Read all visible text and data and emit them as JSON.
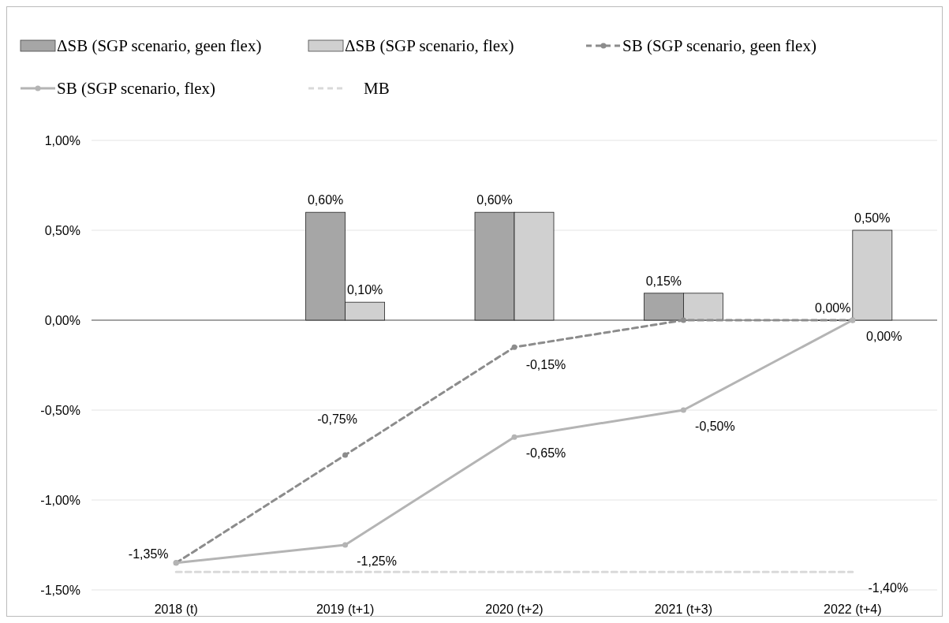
{
  "chart_data": {
    "type": "bar",
    "categories": [
      "2018 (t)",
      "2019 (t+1)",
      "2020 (t+2)",
      "2021 (t+3)",
      "2022 (t+4)"
    ],
    "ylim": [
      -1.5,
      1
    ],
    "yticks": [
      {
        "value": -1.5,
        "label": "-1,50%"
      },
      {
        "value": -1,
        "label": "-1,00%"
      },
      {
        "value": -0.5,
        "label": "-0,50%"
      },
      {
        "value": 0,
        "label": "0,00%"
      },
      {
        "value": 0.5,
        "label": "0,50%"
      },
      {
        "value": 1,
        "label": "1,00%"
      }
    ],
    "grid": "y",
    "legend": "top",
    "marker": "circle",
    "series": [
      {
        "name": "ΔSB (SGP scenario,  geen flex)",
        "color": "#a6a6a6",
        "values": [
          null,
          0.6,
          0.6,
          0.15,
          0
        ],
        "value_labels": [
          null,
          "0,60%",
          "0,60%",
          "0,15%",
          "0,00%"
        ]
      },
      {
        "name": "ΔSB (SGP scenario,  flex)",
        "color": "#d0d0d0",
        "values": [
          null,
          0.1,
          0.6,
          0.15,
          0.5
        ],
        "value_labels": [
          null,
          "0,10%",
          null,
          null,
          "0,50%"
        ]
      },
      {
        "name": "SB (SGP scenario, geen flex)",
        "type": "line",
        "line_style": "dashed",
        "color": "#8c8c8c",
        "values": [
          -1.35,
          -0.75,
          -0.15,
          0,
          0
        ],
        "value_labels": [
          "-1,35%",
          "-0,75%",
          "-0,15%",
          null,
          null
        ]
      },
      {
        "name": "SB (SGP scenario, flex)",
        "type": "line",
        "line_style": "solid",
        "color": "#b4b4b4",
        "values": [
          -1.35,
          -1.25,
          -0.65,
          -0.5,
          0
        ],
        "value_labels": [
          null,
          "-1,25%",
          "-0,65%",
          "-0,50%",
          "0,00%"
        ]
      },
      {
        "name": "MB",
        "type": "line",
        "line_style": "dashed",
        "marker": "none",
        "color": "#d9d9d9",
        "values": [
          -1.4,
          -1.4,
          -1.4,
          -1.4,
          -1.4
        ],
        "value_labels": [
          null,
          null,
          null,
          null,
          "-1,40%"
        ]
      }
    ]
  }
}
